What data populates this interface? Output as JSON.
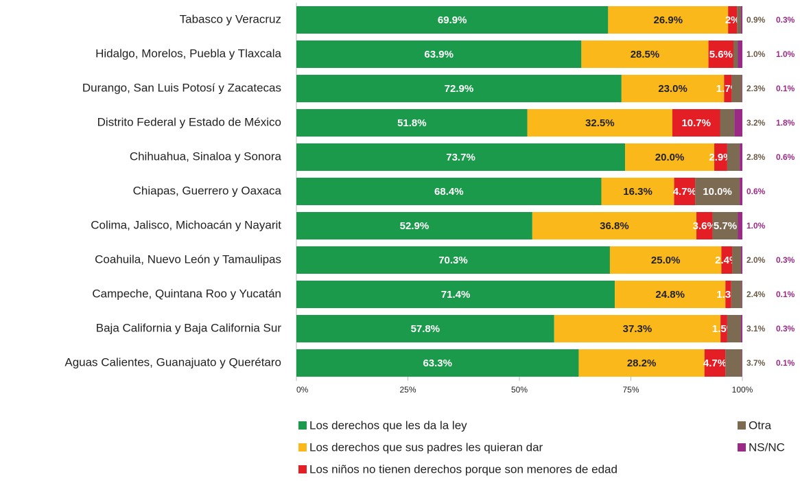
{
  "chart_data": {
    "type": "stacked_barh",
    "categories": [
      "Tabasco y Veracruz",
      "Hidalgo, Morelos, Puebla y Tlaxcala",
      "Durango, San Luis Potosí y Zacatecas",
      "Distrito Federal y Estado de México",
      "Chihuahua, Sinaloa y Sonora",
      "Chiapas, Guerrero y Oaxaca",
      "Colima, Jalisco, Michoacán y Nayarit",
      "Coahuila, Nuevo León y Tamaulipas",
      "Campeche, Quintana Roo y Yucatán",
      "Baja California y Baja California Sur",
      "Aguas Calientes, Guanajuato y Querétaro"
    ],
    "series": [
      {
        "name": "Los derechos que les da la ley",
        "color": "#1a9a4a",
        "values": [
          69.9,
          63.9,
          72.9,
          51.8,
          73.7,
          68.4,
          52.9,
          70.3,
          71.4,
          57.8,
          63.3
        ],
        "value_labels": [
          "69.9%",
          "63.9%",
          "72.9%",
          "51.8%",
          "73.7%",
          "68.4%",
          "52.9%",
          "70.3%",
          "71.4%",
          "57.8%",
          "63.3%"
        ]
      },
      {
        "name": "Los derechos que sus padres les quieran dar",
        "color": "#fbb81b",
        "values": [
          26.9,
          28.5,
          23.0,
          32.5,
          20.0,
          16.3,
          36.8,
          25.0,
          24.8,
          37.3,
          28.2
        ],
        "value_labels": [
          "26.9%",
          "28.5%",
          "23.0%",
          "32.5%",
          "20.0%",
          "16.3%",
          "36.8%",
          "25.0%",
          "24.8%",
          "37.3%",
          "28.2%"
        ]
      },
      {
        "name": "Los niños no tienen derechos porque son menores de edad",
        "color": "#e31e25",
        "values": [
          2,
          5.6,
          1.7,
          10.7,
          2.9,
          4.7,
          3.6,
          2.4,
          1.3,
          1.5,
          4.7
        ],
        "value_labels": [
          "2%",
          "5.6%",
          "1.7%",
          "10.7%",
          "2.9%",
          "4.7%",
          "3.6%",
          "2.4%",
          "1.3%",
          "1.5%",
          "4.7%"
        ]
      },
      {
        "name": "Otra",
        "color": "#7d6a53",
        "values": [
          0.9,
          1.0,
          2.3,
          3.2,
          2.8,
          10.0,
          5.7,
          2.0,
          2.4,
          3.1,
          3.7
        ],
        "value_labels": [
          "0.9%",
          "1.0%",
          "2.3%",
          "3.2%",
          "2.8%",
          "10.0%",
          "5.7%",
          "2.0%",
          "2.4%",
          "3.1%",
          "3.7%"
        ]
      },
      {
        "name": "NS/NC",
        "color": "#9a2a86",
        "values": [
          0.3,
          1.0,
          0.1,
          1.8,
          0.6,
          0.6,
          1.0,
          0.3,
          0.1,
          0.3,
          0.1
        ],
        "value_labels": [
          "0.3%",
          "1.0%",
          "0.1%",
          "1.8%",
          "0.6%",
          "0.6%",
          "1.0%",
          "0.3%",
          "0.1%",
          "0.3%",
          "0.1%"
        ]
      }
    ],
    "xlim": [
      0,
      100
    ],
    "xticks": [
      {
        "value": 0,
        "label": "0%"
      },
      {
        "value": 25,
        "label": "25%"
      },
      {
        "value": 50,
        "label": "50%"
      },
      {
        "value": 75,
        "label": "75%"
      },
      {
        "value": 100,
        "label": "100%"
      }
    ]
  }
}
